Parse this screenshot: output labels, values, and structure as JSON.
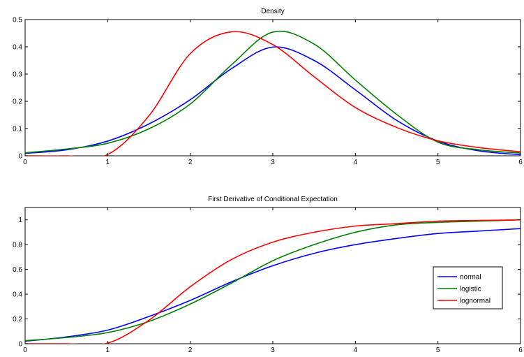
{
  "chart_data": [
    {
      "type": "line",
      "title": "Density",
      "xlabel": "",
      "ylabel": "",
      "xlim": [
        0,
        6
      ],
      "ylim": [
        0,
        0.5
      ],
      "xticks": [
        0,
        1,
        2,
        3,
        4,
        5,
        6
      ],
      "yticks": [
        0,
        0.1,
        0.2,
        0.3,
        0.4,
        0.5
      ],
      "ytick_labels": [
        "0",
        "0.1",
        "0.2",
        "0.3",
        "0.4",
        "0.5"
      ],
      "grid": false,
      "legend": "none",
      "x": [
        0,
        0.5,
        1,
        1.5,
        2,
        2.5,
        3,
        3.5,
        4,
        4.5,
        5,
        5.5,
        6
      ],
      "series": [
        {
          "color": "#0000ff",
          "values": [
            0.009,
            0.022,
            0.054,
            0.117,
            0.206,
            0.32,
            0.399,
            0.35,
            0.242,
            0.13,
            0.054,
            0.018,
            0.004
          ]
        },
        {
          "color": "#008000",
          "values": [
            0.011,
            0.025,
            0.046,
            0.099,
            0.19,
            0.334,
            0.454,
            0.41,
            0.278,
            0.152,
            0.05,
            0.022,
            0.01
          ]
        },
        {
          "color": "#ff0000",
          "values": [
            0,
            0,
            0.005,
            0.147,
            0.375,
            0.455,
            0.408,
            0.29,
            0.177,
            0.104,
            0.055,
            0.03,
            0.015
          ]
        }
      ]
    },
    {
      "type": "line",
      "title": "First Derivative of Conditional Expectation",
      "xlabel": "",
      "ylabel": "",
      "xlim": [
        0,
        6
      ],
      "ylim": [
        0,
        1.1
      ],
      "xticks": [
        0,
        1,
        2,
        3,
        4,
        5,
        6
      ],
      "yticks": [
        0,
        0.2,
        0.4,
        0.6,
        0.8,
        1
      ],
      "ytick_labels": [
        "0",
        "0.2",
        "0.4",
        "0.6",
        "0.8",
        "1"
      ],
      "grid": false,
      "legend": "right",
      "x": [
        0,
        0.5,
        1,
        1.5,
        2,
        2.5,
        3,
        3.5,
        4,
        4.5,
        5,
        5.5,
        6
      ],
      "series": [
        {
          "name": "normal",
          "color": "#0000ff",
          "values": [
            0.02,
            0.055,
            0.11,
            0.22,
            0.35,
            0.5,
            0.63,
            0.73,
            0.8,
            0.85,
            0.89,
            0.91,
            0.93
          ]
        },
        {
          "name": "logistic",
          "color": "#008000",
          "values": [
            0.025,
            0.05,
            0.09,
            0.18,
            0.32,
            0.49,
            0.67,
            0.8,
            0.9,
            0.96,
            0.98,
            0.99,
            1.0
          ]
        },
        {
          "name": "lognormal",
          "color": "#ff0000",
          "values": [
            0,
            0,
            0.005,
            0.19,
            0.46,
            0.68,
            0.82,
            0.9,
            0.95,
            0.97,
            0.99,
            0.995,
            1.0
          ]
        }
      ]
    }
  ]
}
